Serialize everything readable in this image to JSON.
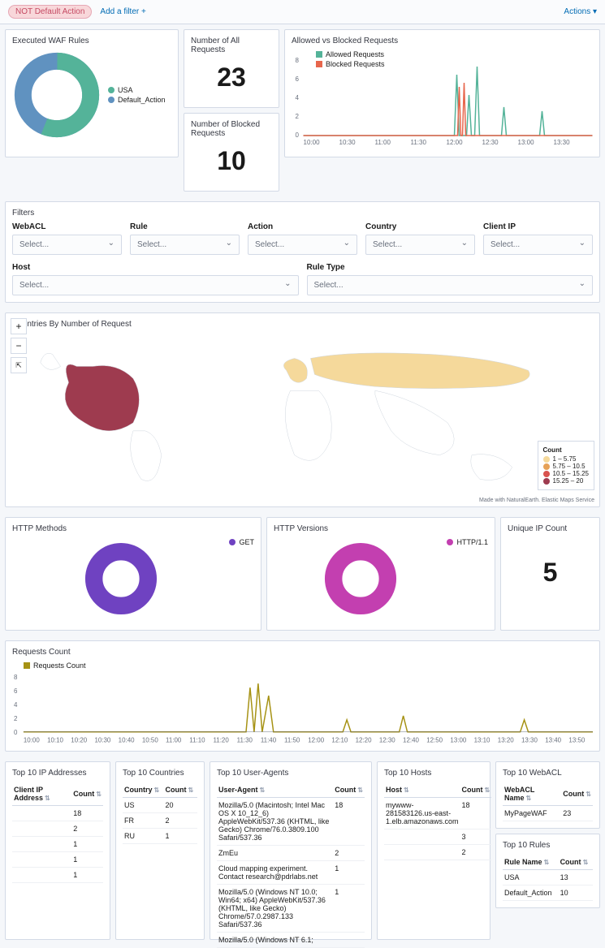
{
  "topbar": {
    "pill": "NOT Default Action",
    "add_filter": "Add a filter +",
    "actions": "Actions ▾"
  },
  "colors": {
    "green": "#54b399",
    "blue": "#6092c0",
    "red": "#e7664c",
    "purple": "#6f42c1",
    "magenta": "#c33fb0",
    "olive": "#a69214",
    "map_highlight": "#9e3b4f",
    "map_light": "#f5d99b",
    "map_stroke": "#cfd6de",
    "grid": "#eef0f4",
    "panel_border": "#d3dae6"
  },
  "executed_waf": {
    "title": "Executed WAF Rules",
    "series": [
      {
        "label": "USA",
        "value": 56,
        "color": "#54b399"
      },
      {
        "label": "Default_Action",
        "value": 44,
        "color": "#6092c0"
      }
    ],
    "inner_radius": 0.6
  },
  "all_requests": {
    "title": "Number of All Requests",
    "value": "23"
  },
  "blocked_requests": {
    "title": "Number of Blocked Requests",
    "value": "10"
  },
  "allowed_vs_blocked": {
    "title": "Allowed vs Blocked Requests",
    "legend": [
      {
        "label": "Allowed Requests",
        "color": "#54b399"
      },
      {
        "label": "Blocked Requests",
        "color": "#e7664c"
      }
    ],
    "y_ticks": [
      "0",
      "2",
      "4",
      "6",
      "8"
    ],
    "x_ticks": [
      "10:00",
      "10:30",
      "11:00",
      "11:30",
      "12:00",
      "12:30",
      "13:00",
      "13:30"
    ],
    "ylim": [
      0,
      8
    ]
  },
  "filters": {
    "title": "Filters",
    "placeholder": "Select...",
    "row1": [
      "WebACL",
      "Rule",
      "Action",
      "Country",
      "Client IP"
    ],
    "row2": [
      "Host",
      "Rule Type"
    ]
  },
  "countries_map": {
    "title": "Countries By Number of Request",
    "legend_title": "Count",
    "legend": [
      {
        "color": "#f5d99b",
        "label": "1 – 5.75"
      },
      {
        "color": "#e6a157",
        "label": "5.75 – 10.5"
      },
      {
        "color": "#d9534f",
        "label": "10.5 – 15.25"
      },
      {
        "color": "#9e3b4f",
        "label": "15.25 – 20"
      }
    ],
    "attribution": "Made with NaturalEarth. Elastic Maps Service"
  },
  "http_methods": {
    "title": "HTTP Methods",
    "series": [
      {
        "label": "GET",
        "color": "#6f42c1"
      }
    ]
  },
  "http_versions": {
    "title": "HTTP Versions",
    "series": [
      {
        "label": "HTTP/1.1",
        "color": "#c33fb0"
      }
    ]
  },
  "unique_ip": {
    "title": "Unique IP Count",
    "value": "5"
  },
  "requests_count": {
    "title": "Requests Count",
    "legend_label": "Requests Count",
    "color": "#a69214",
    "y_ticks": [
      "0",
      "2",
      "4",
      "6",
      "8"
    ],
    "x_ticks": [
      "10:00",
      "10:10",
      "10:20",
      "10:30",
      "10:40",
      "10:50",
      "11:00",
      "11:10",
      "11:20",
      "11:30",
      "11:40",
      "11:50",
      "12:00",
      "12:10",
      "12:20",
      "12:30",
      "12:40",
      "12:50",
      "13:00",
      "13:10",
      "13:20",
      "13:30",
      "13:40",
      "13:50"
    ],
    "ylim": [
      0,
      8
    ]
  },
  "top_ip": {
    "title": "Top 10 IP Addresses",
    "columns": [
      "Client IP Address",
      "Count"
    ],
    "rows": [
      [
        "",
        "18"
      ],
      [
        "",
        "2"
      ],
      [
        "",
        "1"
      ],
      [
        "",
        "1"
      ],
      [
        "",
        "1"
      ]
    ]
  },
  "top_countries": {
    "title": "Top 10 Countries",
    "columns": [
      "Country",
      "Count"
    ],
    "rows": [
      [
        "US",
        "20"
      ],
      [
        "FR",
        "2"
      ],
      [
        "RU",
        "1"
      ]
    ]
  },
  "top_ua": {
    "title": "Top 10 User-Agents",
    "columns": [
      "User-Agent",
      "Count"
    ],
    "rows": [
      [
        "Mozilla/5.0 (Macintosh; Intel Mac OS X 10_12_6) AppleWebKit/537.36 (KHTML, like Gecko) Chrome/76.0.3809.100 Safari/537.36",
        "18"
      ],
      [
        "ZmEu",
        "2"
      ],
      [
        "Cloud mapping experiment. Contact research@pdrlabs.net",
        "1"
      ],
      [
        "Mozilla/5.0 (Windows NT 10.0; Win64; x64) AppleWebKit/537.36 (KHTML, like Gecko) Chrome/57.0.2987.133 Safari/537.36",
        "1"
      ],
      [
        "Mozilla/5.0 (Windows NT 6.1;",
        ""
      ]
    ]
  },
  "top_hosts": {
    "title": "Top 10 Hosts",
    "columns": [
      "Host",
      "Count"
    ],
    "rows": [
      [
        "mywww-281583126.us-east-1.elb.amazonaws.com",
        "18"
      ],
      [
        "",
        "3"
      ],
      [
        "",
        "2"
      ]
    ]
  },
  "top_webacl": {
    "title": "Top 10 WebACL",
    "columns": [
      "WebACL Name",
      "Count"
    ],
    "rows": [
      [
        "MyPageWAF",
        "23"
      ]
    ]
  },
  "top_rules": {
    "title": "Top 10 Rules",
    "columns": [
      "Rule Name",
      "Count"
    ],
    "rows": [
      [
        "USA",
        "13"
      ],
      [
        "Default_Action",
        "10"
      ]
    ]
  }
}
